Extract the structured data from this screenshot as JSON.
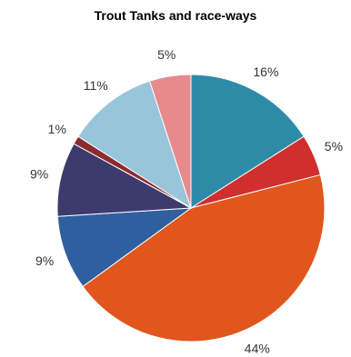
{
  "chart_data": {
    "type": "pie",
    "title": "Trout Tanks and race-ways",
    "slices": [
      {
        "value": 16,
        "label": "16%",
        "color": "#2E8BA8"
      },
      {
        "value": 5,
        "label": "5%",
        "color": "#D12E2E"
      },
      {
        "value": 44,
        "label": "44%",
        "color": "#E0561C"
      },
      {
        "value": 9,
        "label": "9%",
        "color": "#2F5F9F"
      },
      {
        "value": 9,
        "label": "9%",
        "color": "#3D3A6E"
      },
      {
        "value": 1,
        "label": "1%",
        "color": "#8C2B2E"
      },
      {
        "value": 11,
        "label": "11%",
        "color": "#98C5DA"
      },
      {
        "value": 5,
        "label": "5%",
        "color": "#E8898E"
      }
    ],
    "start": "12 o'clock",
    "direction": "clockwise",
    "legend": "none",
    "data_labels": "outside"
  }
}
